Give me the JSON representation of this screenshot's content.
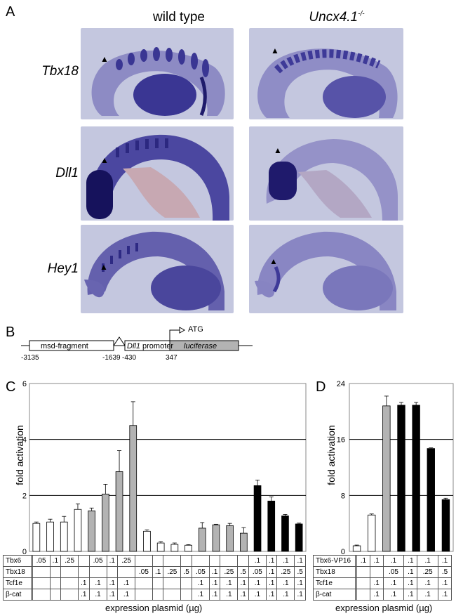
{
  "panel_a": {
    "letter": "A",
    "col_wildtype": "wild type",
    "col_mutant_base": "Uncx4.1",
    "col_mutant_sup": "-/-",
    "rows": [
      "Tbx18",
      "Dll1",
      "Hey1"
    ]
  },
  "panel_b": {
    "letter": "B",
    "msd_label": "msd-fragment",
    "promoter_gene": "Dll1",
    "promoter_word": "promoter",
    "luc_label": "luciferase",
    "atg_label": "ATG",
    "pos1": "-3135",
    "pos2": "-1639",
    "pos3": "-430",
    "pos4": "347"
  },
  "colors": {
    "stain": "#2e2a84",
    "background": "#c4c7df",
    "grey_bar": "#b3b3b3",
    "black_bar": "#000000"
  },
  "chart_data": [
    {
      "panel": "C",
      "type": "bar",
      "ylabel": "fold activation",
      "xlabel": "expression plasmid (µg)",
      "ylim": [
        0,
        6
      ],
      "yticks": [
        0,
        2,
        4,
        6
      ],
      "values": [
        1.0,
        1.05,
        1.05,
        1.5,
        1.45,
        2.05,
        2.85,
        4.5,
        0.72,
        0.3,
        0.25,
        0.22,
        0.83,
        0.95,
        0.92,
        0.65,
        2.35,
        1.8,
        1.27,
        0.98
      ],
      "errors": [
        0.05,
        0.1,
        0.2,
        0.2,
        0.1,
        0.35,
        0.75,
        0.85,
        0.05,
        0.05,
        0.05,
        0.02,
        0.2,
        0.02,
        0.08,
        0.2,
        0.2,
        0.15,
        0.05,
        0.03
      ],
      "fills": [
        "white",
        "white",
        "white",
        "white",
        "grey",
        "grey",
        "grey",
        "grey",
        "white",
        "white",
        "white",
        "white",
        "grey",
        "grey",
        "grey",
        "grey",
        "black",
        "black",
        "black",
        "black"
      ],
      "table": [
        {
          "label": "Tbx6",
          "cells": [
            "",
            ".05",
            ".1",
            ".25",
            "",
            ".05",
            ".1",
            ".25",
            "",
            "",
            "",
            "",
            "",
            "",
            "",
            "",
            ".1",
            ".1",
            ".1",
            ".1"
          ]
        },
        {
          "label": "Tbx18",
          "cells": [
            "",
            "",
            "",
            "",
            "",
            "",
            "",
            "",
            ".05",
            ".1",
            ".25",
            ".5",
            ".05",
            ".1",
            ".25",
            ".5",
            ".05",
            ".1",
            ".25",
            ".5"
          ]
        },
        {
          "label": "Tcf1e",
          "cells": [
            "",
            "",
            "",
            "",
            ".1",
            ".1",
            ".1",
            ".1",
            "",
            "",
            "",
            "",
            ".1",
            ".1",
            ".1",
            ".1",
            ".1",
            ".1",
            ".1",
            ".1"
          ]
        },
        {
          "label": "β-cat",
          "cells": [
            "",
            "",
            "",
            "",
            ".1",
            ".1",
            ".1",
            ".1",
            "",
            "",
            "",
            "",
            ".1",
            ".1",
            ".1",
            ".1",
            ".1",
            ".1",
            ".1",
            ".1"
          ]
        }
      ]
    },
    {
      "panel": "D",
      "type": "bar",
      "ylabel": "fold activation",
      "xlabel": "expression plasmid (µg)",
      "ylim": [
        0,
        24
      ],
      "yticks": [
        0,
        8,
        16,
        24
      ],
      "values": [
        0.8,
        5.2,
        20.8,
        20.9,
        20.9,
        14.7,
        7.4
      ],
      "errors": [
        0.1,
        0.15,
        1.4,
        0.4,
        0.4,
        0.1,
        0.2
      ],
      "fills": [
        "white",
        "white",
        "grey",
        "black",
        "black",
        "black",
        "black"
      ],
      "table": [
        {
          "label": "Tbx6-VP16",
          "cells": [
            "",
            ".1",
            ".1",
            ".1",
            ".1",
            ".1",
            ".1"
          ]
        },
        {
          "label": "Tbx18",
          "cells": [
            "",
            "",
            "",
            ".05",
            ".1",
            ".25",
            ".5"
          ]
        },
        {
          "label": "Tcf1e",
          "cells": [
            "",
            "",
            ".1",
            ".1",
            ".1",
            ".1",
            ".1"
          ]
        },
        {
          "label": "β-cat",
          "cells": [
            "",
            "",
            ".1",
            ".1",
            ".1",
            ".1",
            ".1"
          ]
        }
      ]
    }
  ]
}
